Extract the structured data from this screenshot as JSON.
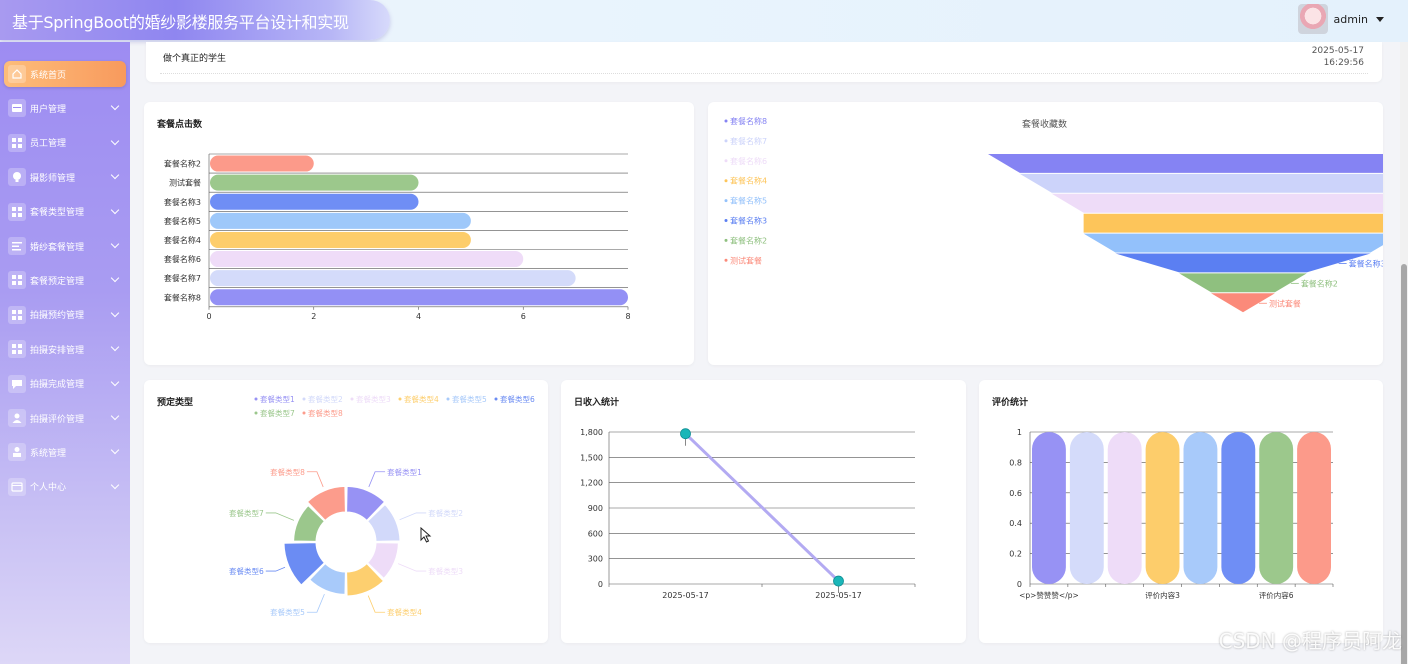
{
  "app": {
    "title": "基于SpringBoot的婚纱影楼服务平台设计和实现"
  },
  "user": {
    "name": "admin"
  },
  "colors": {
    "accent": "#9d8cf2",
    "active_menu": "#f9a865",
    "line_series": "#b3aaf2",
    "line_marker": "#1bb6b8"
  },
  "sidebar": {
    "items": [
      {
        "label": "系统首页",
        "icon": "home-icon",
        "active": true,
        "expandable": false
      },
      {
        "label": "用户管理",
        "icon": "user-card-icon",
        "expandable": true
      },
      {
        "label": "员工管理",
        "icon": "grid-icon",
        "expandable": true
      },
      {
        "label": "摄影师管理",
        "icon": "bulb-icon",
        "expandable": true
      },
      {
        "label": "套餐类型管理",
        "icon": "grid-icon",
        "expandable": true
      },
      {
        "label": "婚纱套餐管理",
        "icon": "list-icon",
        "expandable": true
      },
      {
        "label": "套餐预定管理",
        "icon": "grid-icon",
        "expandable": true
      },
      {
        "label": "拍摄预约管理",
        "icon": "grid-icon",
        "expandable": true
      },
      {
        "label": "拍摄安排管理",
        "icon": "grid-icon",
        "expandable": true
      },
      {
        "label": "拍摄完成管理",
        "icon": "chat-icon",
        "expandable": true
      },
      {
        "label": "拍摄评价管理",
        "icon": "person-icon",
        "expandable": true
      },
      {
        "label": "系统管理",
        "icon": "admin-icon",
        "expandable": true
      },
      {
        "label": "个人中心",
        "icon": "window-icon",
        "expandable": true
      }
    ]
  },
  "notice": {
    "message": "做个真正的学生",
    "date": "2025-05-17",
    "time": "16:29:56"
  },
  "cards": {
    "clicks": {
      "title": "套餐点击数"
    },
    "favorites": {
      "title": "套餐收藏数"
    },
    "booking_types": {
      "title": "预定类型"
    },
    "daily_income": {
      "title": "日收入统计"
    },
    "reviews": {
      "title": "评价统计"
    }
  },
  "chart_data": [
    {
      "id": "clicks",
      "type": "bar",
      "orientation": "horizontal",
      "title": "套餐点击数",
      "categories": [
        "套餐名称2",
        "测试套餐",
        "套餐名称3",
        "套餐名称5",
        "套餐名称4",
        "套餐名称6",
        "套餐名称7",
        "套餐名称8"
      ],
      "values": [
        2,
        4,
        4,
        5,
        5,
        6,
        7,
        8
      ],
      "colors": [
        "#fc9a8a",
        "#9cc88c",
        "#6f8ef5",
        "#9ec8fa",
        "#fdcd6b",
        "#efdcf8",
        "#d4dbfa",
        "#9390f5"
      ],
      "xlim": [
        0,
        8
      ],
      "xticks": [
        0,
        2,
        4,
        6,
        8
      ],
      "grid": true
    },
    {
      "id": "favorites",
      "type": "funnel",
      "title": "套餐收藏数",
      "categories": [
        "套餐名称8",
        "套餐名称7",
        "套餐名称6",
        "套餐名称4",
        "套餐名称5",
        "套餐名称3",
        "套餐名称2",
        "测试套餐"
      ],
      "values": [
        8,
        7,
        6,
        5,
        5,
        4,
        2,
        1
      ],
      "colors": [
        "#8583f3",
        "#ccd3fa",
        "#eedcf8",
        "#fdc55a",
        "#93c1fb",
        "#5b7ff2",
        "#8fc07f",
        "#fb8a7a"
      ],
      "legend": "left"
    },
    {
      "id": "booking_types",
      "type": "pie",
      "variant": "rose",
      "title": "预定类型",
      "categories": [
        "套餐类型1",
        "套餐类型2",
        "套餐类型3",
        "套餐类型4",
        "套餐类型5",
        "套餐类型6",
        "套餐类型7",
        "套餐类型8"
      ],
      "values": [
        3,
        2.5,
        2,
        2.5,
        2,
        5,
        2,
        3
      ],
      "colors": [
        "#9792f4",
        "#d2d9fa",
        "#eedcf8",
        "#fdcf6f",
        "#a8cafa",
        "#6b8cf3",
        "#9bc78c",
        "#fc9c8c"
      ],
      "legend": "top"
    },
    {
      "id": "daily_income",
      "type": "line",
      "title": "日收入统计",
      "x": [
        "2025-05-17",
        "2025-05-17"
      ],
      "values": [
        1780,
        35
      ],
      "ylim": [
        0,
        1800
      ],
      "yticks": [
        "0",
        "300",
        "600",
        "900",
        "1,200",
        "1,500",
        "1,800"
      ],
      "grid": true
    },
    {
      "id": "reviews",
      "type": "bar",
      "title": "评价统计",
      "categories": [
        "<p>赞赞赞</p>",
        "",
        "",
        "评价内容3",
        "",
        "",
        "评价内容6",
        ""
      ],
      "values": [
        1,
        1,
        1,
        1,
        1,
        1,
        1,
        1
      ],
      "colors": [
        "#9792f4",
        "#d4dbfa",
        "#eedcf8",
        "#fdcd6b",
        "#a8cafa",
        "#6f8ef5",
        "#9cc88c",
        "#fc9a8a"
      ],
      "ylim": [
        0,
        1
      ],
      "yticks": [
        "0",
        "0.2",
        "0.4",
        "0.6",
        "0.8",
        "1"
      ],
      "grid": true
    }
  ],
  "watermark": "CSDN @程序员阿龙"
}
